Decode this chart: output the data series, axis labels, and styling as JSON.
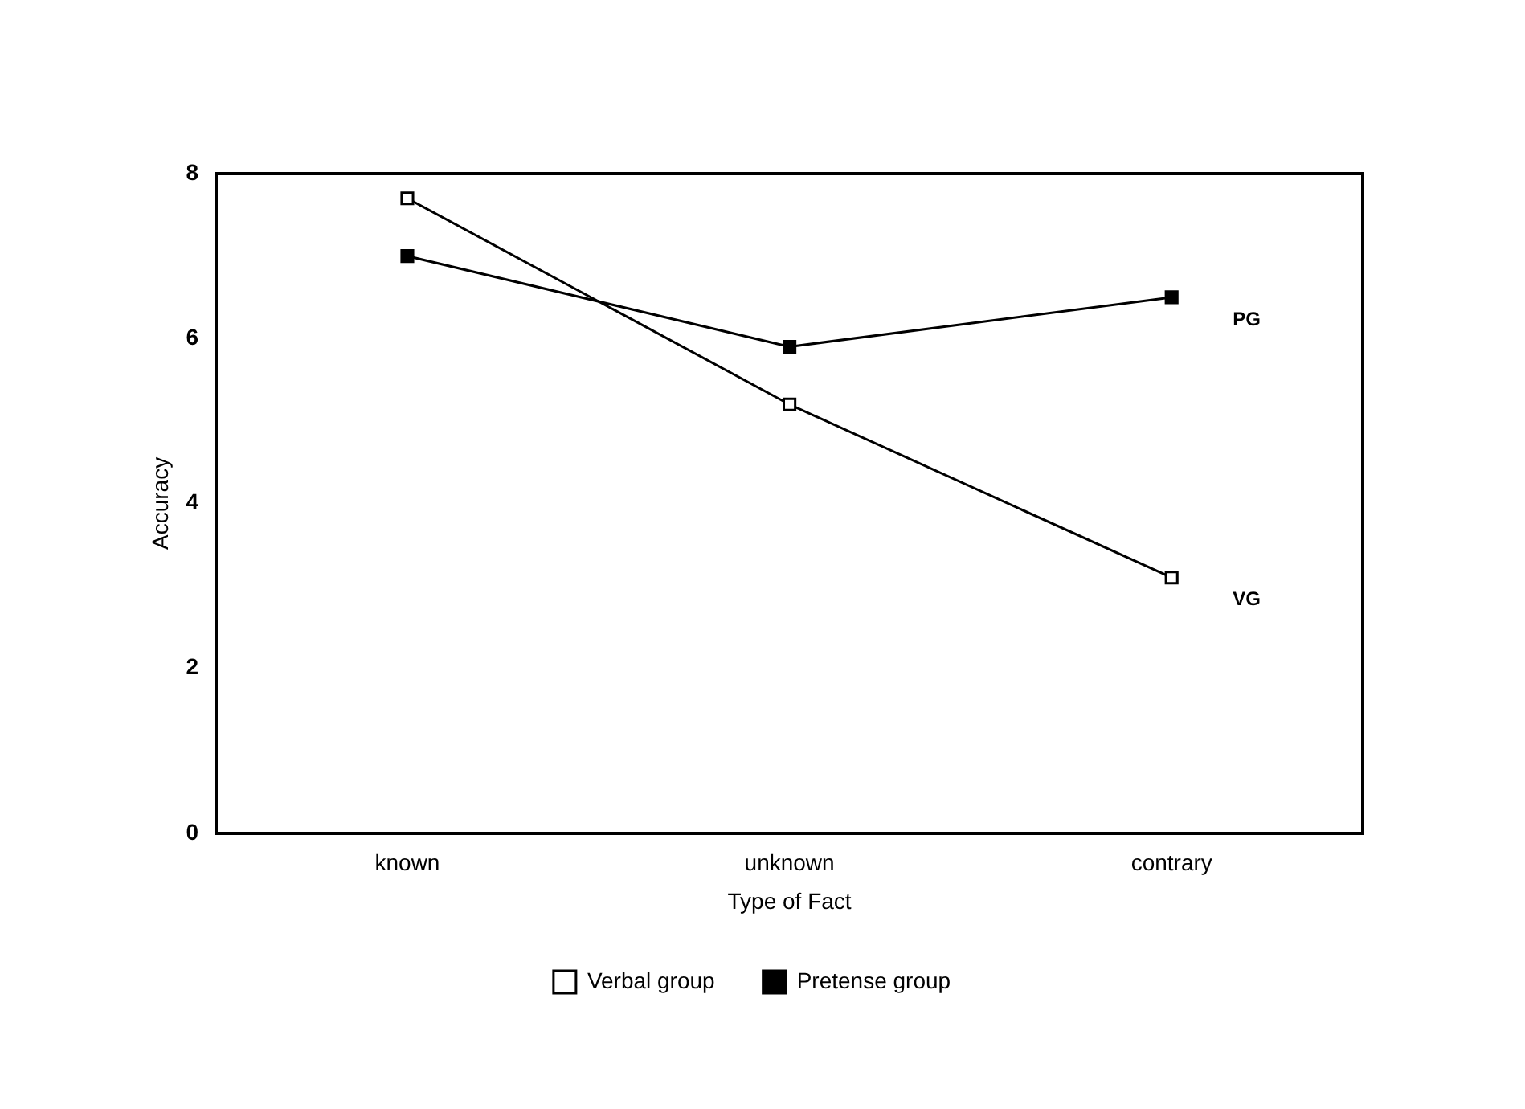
{
  "chart_data": {
    "type": "line",
    "xlabel": "Type of Fact",
    "ylabel": "Accuracy",
    "categories": [
      "known",
      "unknown",
      "contrary"
    ],
    "series": [
      {
        "name": "Verbal group",
        "color": "#000000",
        "values": [
          7.7,
          5.2,
          3.1
        ],
        "marker": "square"
      },
      {
        "name": "Pretense group",
        "color": "#000000",
        "values": [
          7.0,
          5.9,
          6.5
        ],
        "marker": "square"
      }
    ],
    "ylim": [
      0,
      8
    ],
    "yticks": [
      0,
      2,
      4,
      6,
      8
    ],
    "grid": false,
    "legend": "bottom",
    "line_style": "solid",
    "annotations": [
      "PG",
      "VG"
    ]
  }
}
